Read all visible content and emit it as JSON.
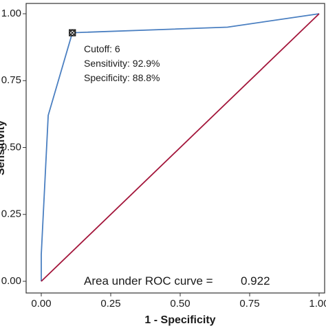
{
  "chart_data": {
    "type": "line",
    "xlabel": "1 - Specificity",
    "ylabel": "Sensitivity",
    "xlim": [
      0,
      1
    ],
    "ylim": [
      0,
      1
    ],
    "xticks": [
      "0.00",
      "0.25",
      "0.50",
      "0.75",
      "1.00"
    ],
    "yticks": [
      "0.00",
      "0.25",
      "0.50",
      "0.75",
      "1.00"
    ],
    "series": [
      {
        "color": "#4a7fc1",
        "x": [
          0.0,
          0.0,
          0.025,
          0.112,
          0.67,
          1.0
        ],
        "y": [
          0.0,
          0.1,
          0.62,
          0.929,
          0.95,
          1.0
        ]
      },
      {
        "color": "#a3153a",
        "x": [
          0.0,
          1.0
        ],
        "y": [
          0.0,
          1.0
        ]
      }
    ],
    "cutoff_point": {
      "x": 0.112,
      "y": 0.929
    },
    "annotations": {
      "cutoff": "Cutoff: 6",
      "sensitivity": "Sensitivity: 92.9%",
      "specificity": "Specificity: 88.8%",
      "auc_label": "Area under ROC curve =",
      "auc_value": "0.922"
    },
    "grid": false
  }
}
